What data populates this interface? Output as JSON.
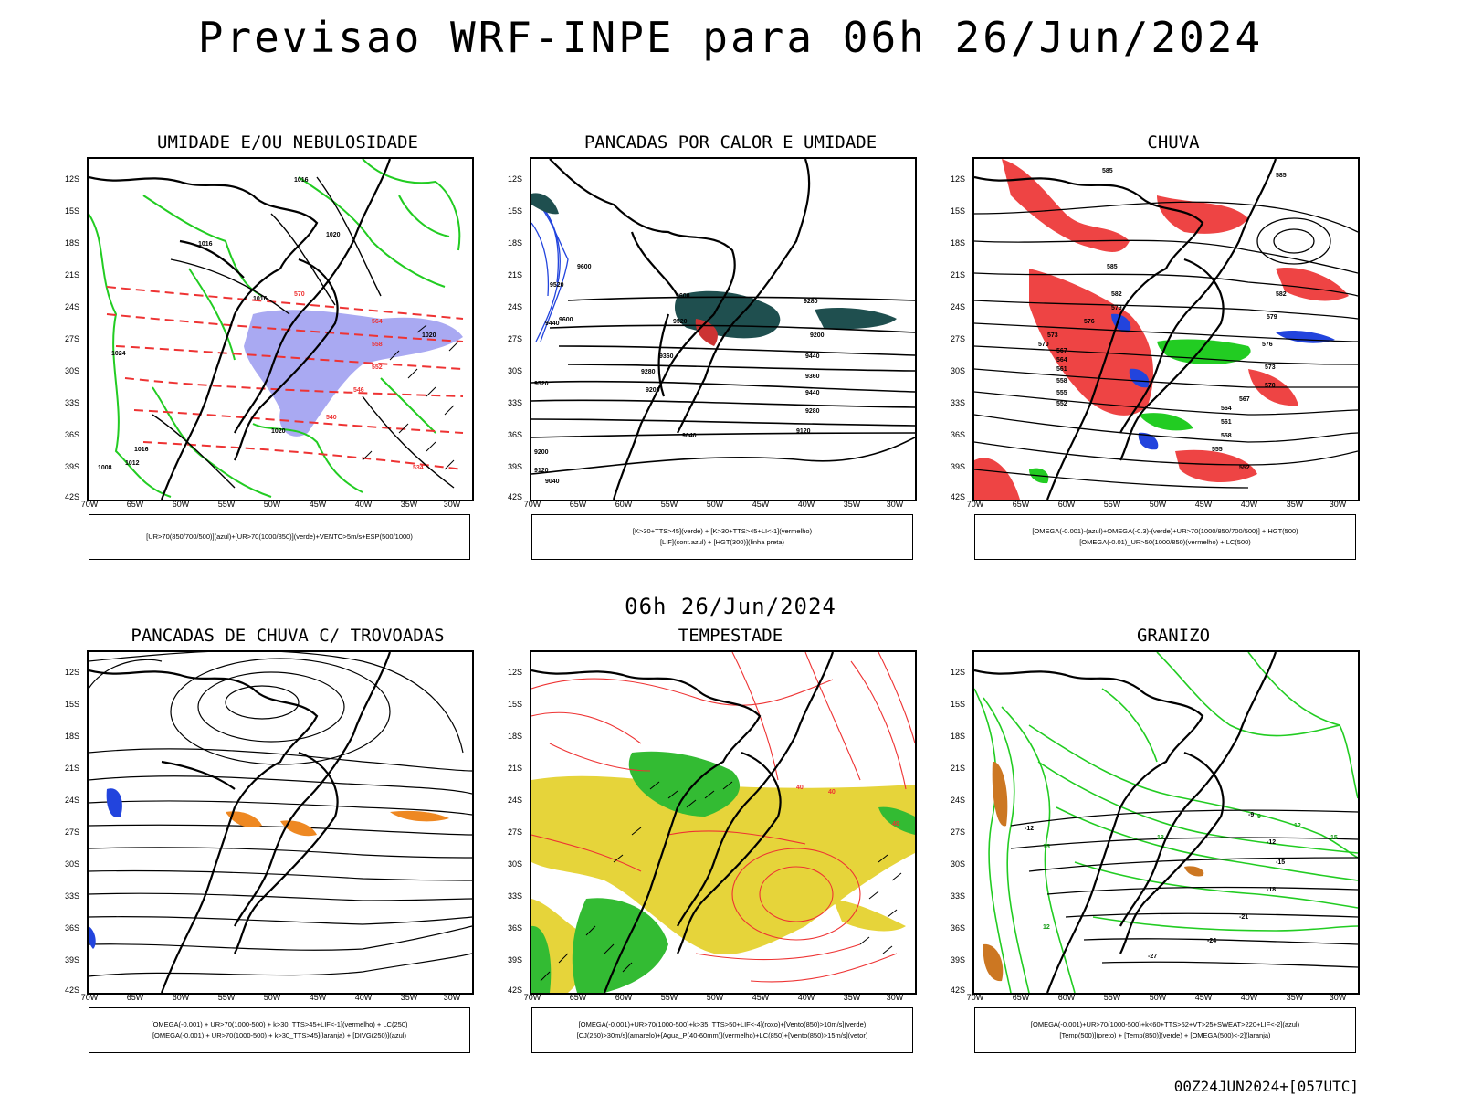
{
  "main_title": "Previsao WRF-INPE  para 06h 26/Jun/2024",
  "mid_date": "06h 26/Jun/2024",
  "footer_stamp": "00Z24JUN2024+[057UTC]",
  "axes": {
    "lat_labels": [
      "12S",
      "15S",
      "18S",
      "21S",
      "24S",
      "27S",
      "30S",
      "33S",
      "36S",
      "39S",
      "42S"
    ],
    "lon_labels": [
      "70W",
      "65W",
      "60W",
      "55W",
      "50W",
      "45W",
      "40W",
      "35W",
      "30W"
    ]
  },
  "panels": [
    {
      "title": "UMIDADE E/OU NEBULOSIDADE",
      "legend": [
        "[UR>70(850/700/500)](azul)+[UR>70(1000/850)](verde)+VENTO>5m/s+ESP(500/1000)"
      ],
      "contour_labels": [
        "1016",
        "1016",
        "1020",
        "1020",
        "1024",
        "1016",
        "570",
        "564",
        "558",
        "552",
        "546",
        "540",
        "534",
        "1020",
        "1016",
        "1008",
        "1012"
      ]
    },
    {
      "title": "PANCADAS POR CALOR E UMIDADE",
      "legend": [
        "[K>30+TTS>45](verde) + [K>30+TTS>45+LI<-1](vermelho)",
        "[LIF](cont.azul) + [HGT(300)](linha preta)"
      ],
      "contour_labels": [
        "9600",
        "9520",
        "9440",
        "9360",
        "9280",
        "9200",
        "9120",
        "9040",
        "9600",
        "9520",
        "9440",
        "9360",
        "9280",
        "9200",
        "9600",
        "9520",
        "9440",
        "9280",
        "9200",
        "9120",
        "9040"
      ]
    },
    {
      "title": "CHUVA",
      "legend": [
        "[OMEGA(-0.001)-(azul)+OMEGA(-0.3)-(verde)+UR>70(1000/850/700/500)] + HGT(500)",
        "[OMEGA(-0.01)_UR>50(1000/850)(vermelho) + LC(500)"
      ],
      "contour_labels": [
        "585",
        "585",
        "582",
        "579",
        "576",
        "573",
        "570",
        "567",
        "564",
        "561",
        "558",
        "555",
        "552",
        "585",
        "582",
        "579",
        "576",
        "573",
        "570",
        "567",
        "564",
        "561",
        "558",
        "555",
        "552"
      ]
    },
    {
      "title": "PANCADAS DE CHUVA C/ TROVOADAS",
      "legend": [
        "[OMEGA(-0.001) + UR>70(1000-500) + k>30_TTS>45+LIF<-1](vermelho) + LC(250)",
        "[OMEGA(-0.001) + UR>70(1000-500) + k>30_TTS>45](laranja) + [DIVG(250)](azul)"
      ],
      "contour_labels": []
    },
    {
      "title": "TEMPESTADE",
      "legend": [
        "[OMEGA(-0.001)+UR>70(1000-500)+k>35_TTS>50+LIF<-4](roxo)+[Vento(850)>10m/s](verde)",
        "[CJ(250)>30m/s](amarelo)+[Agua_P(40-60mm)](vermelho)+LC(850)+[Vento(850)>15m/s](vetor)"
      ],
      "contour_labels": [
        "40",
        "40",
        "40"
      ]
    },
    {
      "title": "GRANIZO",
      "legend": [
        "[OMEGA(-0.001)+UR>70(1000-500)+k<60+TTS>52+VT>25+SWEAT>220+LIF<-2](azul)",
        "[Temp(500)](preto) + [Temp(850)](verde) + [OMEGA(500)<-2](laranja)"
      ],
      "contour_labels": [
        "-9",
        "-12",
        "-12",
        "-15",
        "-18",
        "-21",
        "-24",
        "-27",
        "12",
        "15",
        "18",
        "15",
        "12",
        "9"
      ]
    }
  ],
  "colors": {
    "contour_black": "#000000",
    "humidity_green": "#22cc22",
    "humidity_blue": "#8888ee",
    "thickness_red": "#ee3333",
    "rain_red": "#ee3333",
    "convection_teal": "#1f4f4f",
    "lif_blue": "#2244dd",
    "jet_yellow": "#e6d43a",
    "wind_green": "#33bb33",
    "orange": "#ee8822"
  }
}
